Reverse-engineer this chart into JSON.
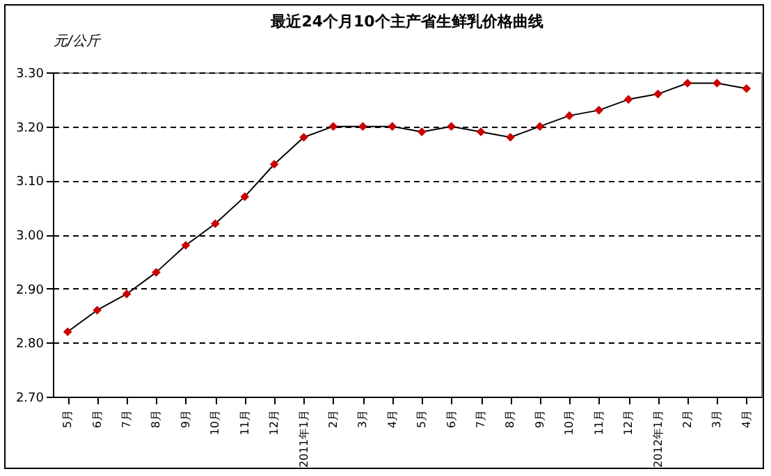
{
  "chart_data": {
    "type": "line",
    "title": "最近24个月10个主产省生鲜乳价格曲线",
    "ylabel": "元/公斤",
    "categories": [
      "5月",
      "6月",
      "7月",
      "8月",
      "9月",
      "10月",
      "11月",
      "12月",
      "2011年1月",
      "2月",
      "3月",
      "4月",
      "5月",
      "6月",
      "7月",
      "8月",
      "9月",
      "10月",
      "11月",
      "12月",
      "2012年1月",
      "2月",
      "3月",
      "4月"
    ],
    "series": [
      {
        "color": "#cc0000",
        "values": [
          2.82,
          2.86,
          2.89,
          2.93,
          2.98,
          3.02,
          3.07,
          3.13,
          3.18,
          3.2,
          3.2,
          3.2,
          3.19,
          3.2,
          3.19,
          3.18,
          3.2,
          3.22,
          3.23,
          3.25,
          3.26,
          3.28,
          3.28,
          3.27
        ]
      }
    ],
    "ylim": [
      2.7,
      3.3
    ],
    "yticks": [
      {
        "value": 2.7,
        "label": "2.70"
      },
      {
        "value": 2.8,
        "label": "2.80"
      },
      {
        "value": 2.9,
        "label": "2.90"
      },
      {
        "value": 3.0,
        "label": "3.00"
      },
      {
        "value": 3.1,
        "label": "3.10"
      },
      {
        "value": 3.2,
        "label": "3.20"
      },
      {
        "value": 3.3,
        "label": "3.30"
      }
    ],
    "grid": "y",
    "marker": "diamond",
    "line_style": "solid",
    "legend": false
  }
}
